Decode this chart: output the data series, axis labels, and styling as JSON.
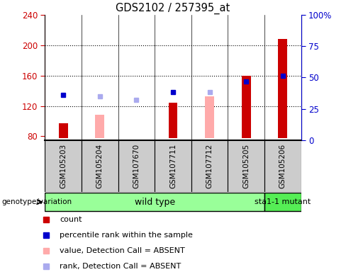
{
  "title": "GDS2102 / 257395_at",
  "samples": [
    "GSM105203",
    "GSM105204",
    "GSM107670",
    "GSM107711",
    "GSM107712",
    "GSM105205",
    "GSM105206"
  ],
  "count": [
    97,
    null,
    null,
    124,
    null,
    160,
    208
  ],
  "count_color": "#cc0000",
  "value_absent": [
    null,
    108,
    null,
    null,
    133,
    null,
    null
  ],
  "value_absent_color": "#ffaaaa",
  "rank_present": [
    135,
    null,
    null,
    138,
    null,
    152,
    160
  ],
  "rank_present_color": "#0000cc",
  "rank_absent": [
    null,
    133,
    128,
    null,
    138,
    null,
    null
  ],
  "rank_absent_color": "#aaaaee",
  "ylim_left": [
    75,
    240
  ],
  "ylim_right": [
    0,
    100
  ],
  "yticks_left": [
    80,
    120,
    160,
    200,
    240
  ],
  "yticks_right": [
    0,
    25,
    50,
    75,
    100
  ],
  "grid_lines": [
    120,
    160,
    200
  ],
  "bar_bottom": 78,
  "bar_width": 0.25,
  "wild_type_color": "#99ff99",
  "mutant_color": "#55ee55",
  "wild_type_count": 6,
  "mutant_count": 1,
  "legend_items": [
    {
      "label": "count",
      "color": "#cc0000"
    },
    {
      "label": "percentile rank within the sample",
      "color": "#0000cc"
    },
    {
      "label": "value, Detection Call = ABSENT",
      "color": "#ffaaaa"
    },
    {
      "label": "rank, Detection Call = ABSENT",
      "color": "#aaaaee"
    }
  ],
  "xlabel_genotype": "genotype/variation",
  "sample_box_color": "#cccccc",
  "plot_bg": "#ffffff"
}
